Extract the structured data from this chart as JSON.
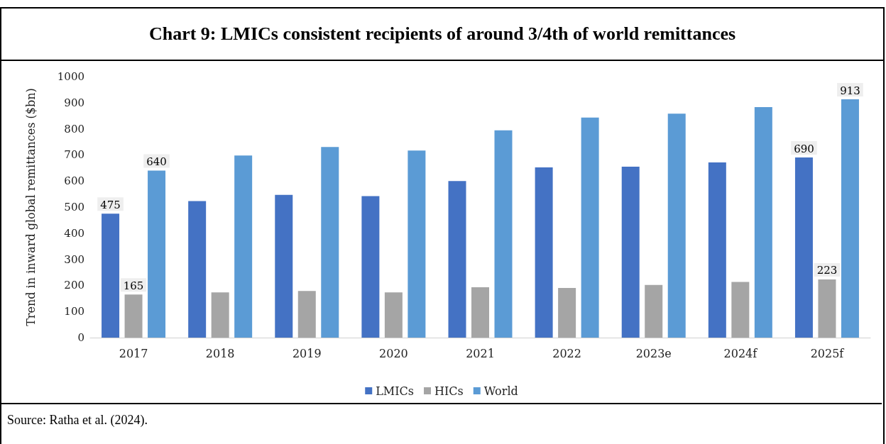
{
  "chart_data": {
    "type": "bar",
    "title": "Chart 9: LMICs consistent recipients of around 3/4th of world remittances",
    "ylabel": "Trend in inward global remittances ($bn)",
    "categories": [
      "2017",
      "2018",
      "2019",
      "2020",
      "2021",
      "2022",
      "2023e",
      "2024f",
      "2025f"
    ],
    "series": [
      {
        "name": "LMICs",
        "color": "#4472c4",
        "values": [
          475,
          523,
          547,
          542,
          600,
          652,
          655,
          671,
          690
        ],
        "value_labels": [
          "475",
          null,
          null,
          null,
          null,
          null,
          null,
          null,
          "690"
        ]
      },
      {
        "name": "HICs",
        "color": "#a5a5a5",
        "values": [
          165,
          173,
          179,
          173,
          193,
          190,
          202,
          213,
          223
        ],
        "value_labels": [
          "165",
          null,
          null,
          null,
          null,
          null,
          null,
          null,
          "223"
        ]
      },
      {
        "name": "World",
        "color": "#5b9bd5",
        "values": [
          640,
          698,
          730,
          717,
          794,
          843,
          858,
          883,
          913
        ],
        "value_labels": [
          "640",
          null,
          null,
          null,
          null,
          null,
          null,
          null,
          "913"
        ]
      }
    ],
    "ylim": [
      0,
      1000
    ],
    "yticks": [
      0,
      100,
      200,
      300,
      400,
      500,
      600,
      700,
      800,
      900,
      1000
    ],
    "grid": false,
    "legend": "bottom",
    "annotations": [
      "Source: Ratha et al. (2024)."
    ]
  }
}
